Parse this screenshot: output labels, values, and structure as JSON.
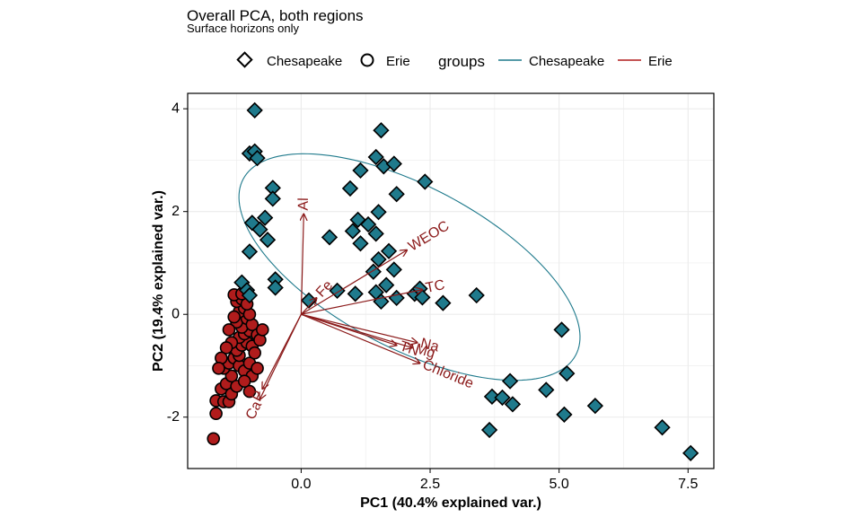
{
  "chart_data": {
    "type": "scatter",
    "title": "Overall PCA, both regions",
    "subtitle": "Surface horizons only",
    "xlabel": "PC1 (40.4% explained var.)",
    "ylabel": "PC2 (19.4% explained var.)",
    "xlim": [
      -2.2,
      8.0
    ],
    "ylim": [
      -3.0,
      4.3
    ],
    "x_ticks": [
      0.0,
      2.5,
      5.0,
      7.5
    ],
    "x_tick_labels": [
      "0.0",
      "2.5",
      "5.0",
      "7.5"
    ],
    "y_ticks": [
      -2,
      0,
      2,
      4
    ],
    "y_tick_labels": [
      "-2",
      "0",
      "2",
      "4"
    ],
    "grid": true,
    "colors": {
      "chesapeake": "#1f7a8c",
      "erie": "#b01c1c",
      "loading": "#8b1a1a",
      "grid": "#ebebeb"
    },
    "legend": {
      "shape_entries": [
        {
          "label": "Chesapeake",
          "shape": "diamond"
        },
        {
          "label": "Erie",
          "shape": "circle"
        }
      ],
      "groups_title": "groups",
      "line_entries": [
        {
          "label": "Chesapeake",
          "color": "#1f7a8c"
        },
        {
          "label": "Erie",
          "color": "#b01c1c"
        }
      ]
    },
    "series": [
      {
        "name": "Chesapeake",
        "shape": "diamond",
        "color": "#1f7a8c",
        "points": [
          [
            -0.9,
            3.97
          ],
          [
            -1.0,
            3.13
          ],
          [
            -0.9,
            3.17
          ],
          [
            -0.85,
            3.04
          ],
          [
            -0.55,
            2.46
          ],
          [
            -0.55,
            2.25
          ],
          [
            -0.95,
            1.78
          ],
          [
            -0.8,
            1.65
          ],
          [
            -0.7,
            1.88
          ],
          [
            -0.65,
            1.45
          ],
          [
            -1.0,
            1.22
          ],
          [
            -1.15,
            0.62
          ],
          [
            -1.05,
            0.47
          ],
          [
            -1.0,
            0.37
          ],
          [
            -0.5,
            0.68
          ],
          [
            -0.5,
            0.52
          ],
          [
            0.15,
            0.27
          ],
          [
            0.7,
            0.46
          ],
          [
            0.55,
            1.5
          ],
          [
            0.95,
            2.45
          ],
          [
            1.15,
            2.8
          ],
          [
            1.45,
            3.06
          ],
          [
            1.55,
            3.58
          ],
          [
            1.6,
            2.88
          ],
          [
            1.8,
            2.93
          ],
          [
            1.85,
            2.34
          ],
          [
            2.4,
            2.58
          ],
          [
            1.1,
            1.84
          ],
          [
            1.5,
            1.99
          ],
          [
            1.3,
            1.75
          ],
          [
            1.45,
            1.57
          ],
          [
            1.0,
            1.62
          ],
          [
            1.15,
            1.38
          ],
          [
            1.5,
            1.07
          ],
          [
            1.7,
            1.23
          ],
          [
            1.8,
            0.87
          ],
          [
            1.4,
            0.83
          ],
          [
            1.65,
            0.57
          ],
          [
            1.05,
            0.4
          ],
          [
            1.45,
            0.43
          ],
          [
            1.55,
            0.25
          ],
          [
            1.85,
            0.32
          ],
          [
            2.2,
            0.4
          ],
          [
            2.3,
            0.5
          ],
          [
            2.35,
            0.33
          ],
          [
            2.75,
            0.22
          ],
          [
            3.4,
            0.37
          ],
          [
            3.7,
            -1.6
          ],
          [
            3.9,
            -1.62
          ],
          [
            4.05,
            -1.3
          ],
          [
            4.1,
            -1.75
          ],
          [
            4.75,
            -1.47
          ],
          [
            5.05,
            -0.3
          ],
          [
            5.15,
            -1.15
          ],
          [
            5.1,
            -1.95
          ],
          [
            5.7,
            -1.78
          ],
          [
            7.0,
            -2.2
          ],
          [
            7.55,
            -2.7
          ],
          [
            3.65,
            -2.25
          ]
        ]
      },
      {
        "name": "Erie",
        "shape": "circle",
        "color": "#b01c1c",
        "points": [
          [
            -1.7,
            -2.42
          ],
          [
            -1.65,
            -1.93
          ],
          [
            -1.65,
            -1.68
          ],
          [
            -1.5,
            -1.7
          ],
          [
            -1.4,
            -1.7
          ],
          [
            -1.55,
            -1.45
          ],
          [
            -1.45,
            -1.35
          ],
          [
            -1.35,
            -1.2
          ],
          [
            -1.5,
            -1.05
          ],
          [
            -1.4,
            -0.95
          ],
          [
            -1.3,
            -0.85
          ],
          [
            -1.2,
            -1.0
          ],
          [
            -1.1,
            -1.1
          ],
          [
            -1.0,
            -0.95
          ],
          [
            -1.2,
            -0.8
          ],
          [
            -1.25,
            -0.7
          ],
          [
            -1.15,
            -0.6
          ],
          [
            -1.05,
            -0.55
          ],
          [
            -0.95,
            -0.62
          ],
          [
            -1.2,
            -0.45
          ],
          [
            -1.1,
            -0.38
          ],
          [
            -1.0,
            -0.32
          ],
          [
            -1.15,
            -0.25
          ],
          [
            -1.25,
            -0.15
          ],
          [
            -1.05,
            -0.08
          ],
          [
            -0.95,
            -0.2
          ],
          [
            -1.2,
            0.05
          ],
          [
            -1.1,
            0.12
          ],
          [
            -1.0,
            0.0
          ],
          [
            -1.25,
            0.25
          ],
          [
            -1.15,
            0.3
          ],
          [
            -1.05,
            0.2
          ],
          [
            -0.85,
            -0.4
          ],
          [
            -0.9,
            -0.75
          ],
          [
            -0.8,
            -0.5
          ],
          [
            -0.75,
            -0.3
          ],
          [
            -1.3,
            0.38
          ],
          [
            -1.35,
            -0.55
          ],
          [
            -1.4,
            -0.3
          ],
          [
            -1.3,
            -0.05
          ],
          [
            -1.45,
            -0.65
          ],
          [
            -1.55,
            -0.85
          ],
          [
            -1.6,
            -1.05
          ],
          [
            -1.35,
            -1.55
          ],
          [
            -1.25,
            -1.4
          ],
          [
            -0.95,
            -1.2
          ],
          [
            -1.0,
            -1.5
          ],
          [
            -0.85,
            -1.05
          ],
          [
            -1.1,
            -1.3
          ],
          [
            -1.15,
            0.4
          ]
        ]
      }
    ],
    "ellipses": [
      {
        "group": "Chesapeake",
        "center": [
          2.1,
          0.92
        ],
        "semi_axis_a": 3.65,
        "semi_axis_b": 1.57,
        "angle_deg": -28
      }
    ],
    "loadings": [
      {
        "label": "Al",
        "x": 0.05,
        "y": 1.95
      },
      {
        "label": "Fe",
        "x": 0.3,
        "y": 0.32
      },
      {
        "label": "WEOC",
        "x": 2.05,
        "y": 1.25
      },
      {
        "label": "TC",
        "x": 2.35,
        "y": 0.48
      },
      {
        "label": "Na",
        "x": 2.25,
        "y": -0.55
      },
      {
        "label": "Mg",
        "x": 2.15,
        "y": -0.65
      },
      {
        "label": "Chloride",
        "x": 2.3,
        "y": -0.95
      },
      {
        "label": "TN",
        "x": 1.85,
        "y": -0.6
      },
      {
        "label": "Ca",
        "x": -0.8,
        "y": -1.65
      },
      {
        "label": "P",
        "x": -0.75,
        "y": -1.45
      }
    ]
  }
}
